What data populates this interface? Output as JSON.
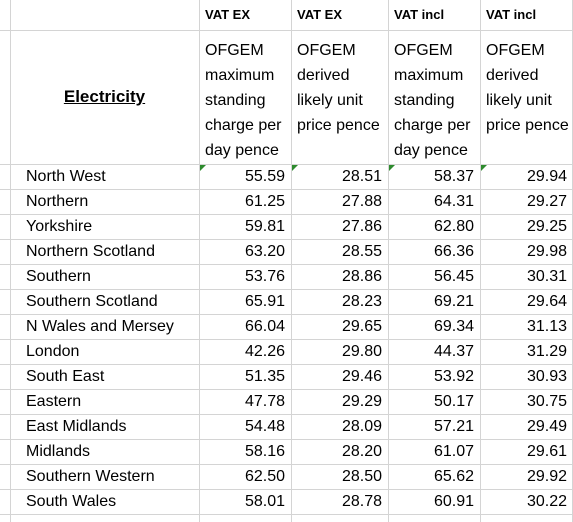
{
  "header": {
    "title": "Electricity",
    "vat_labels": [
      "VAT EX",
      "VAT EX",
      "VAT incl",
      "VAT incl"
    ],
    "columns": [
      "OFGEM maximum standing charge per day pence",
      "OFGEM derived likely unit price pence",
      "OFGEM maximum standing charge per day pence",
      "OFGEM derived likely unit price pence"
    ]
  },
  "rows": [
    {
      "region": "North West",
      "values": [
        "55.59",
        "28.51",
        "58.37",
        "29.94"
      ]
    },
    {
      "region": "Northern",
      "values": [
        "61.25",
        "27.88",
        "64.31",
        "29.27"
      ]
    },
    {
      "region": "Yorkshire",
      "values": [
        "59.81",
        "27.86",
        "62.80",
        "29.25"
      ]
    },
    {
      "region": "Northern Scotland",
      "values": [
        "63.20",
        "28.55",
        "66.36",
        "29.98"
      ]
    },
    {
      "region": "Southern",
      "values": [
        "53.76",
        "28.86",
        "56.45",
        "30.31"
      ]
    },
    {
      "region": "Southern Scotland",
      "values": [
        "65.91",
        "28.23",
        "69.21",
        "29.64"
      ]
    },
    {
      "region": "N Wales and Mersey",
      "values": [
        "66.04",
        "29.65",
        "69.34",
        "31.13"
      ]
    },
    {
      "region": "London",
      "values": [
        "42.26",
        "29.80",
        "44.37",
        "31.29"
      ]
    },
    {
      "region": "South East",
      "values": [
        "51.35",
        "29.46",
        "53.92",
        "30.93"
      ]
    },
    {
      "region": "Eastern",
      "values": [
        "47.78",
        "29.29",
        "50.17",
        "30.75"
      ]
    },
    {
      "region": "East Midlands",
      "values": [
        "54.48",
        "28.09",
        "57.21",
        "29.49"
      ]
    },
    {
      "region": "Midlands",
      "values": [
        "58.16",
        "28.20",
        "61.07",
        "29.61"
      ]
    },
    {
      "region": "Southern Western",
      "values": [
        "62.50",
        "28.50",
        "65.62",
        "29.92"
      ]
    },
    {
      "region": "South Wales",
      "values": [
        "58.01",
        "28.78",
        "60.91",
        "30.22"
      ]
    }
  ]
}
